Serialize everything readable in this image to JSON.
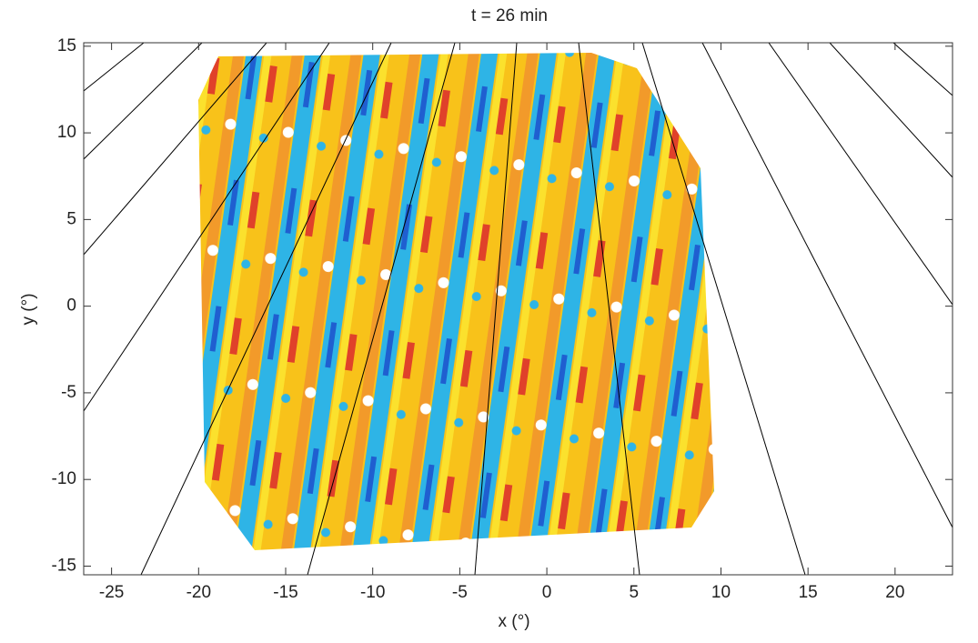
{
  "chart_data": {
    "type": "field",
    "title": "t = 26 min",
    "xlabel": "x (°)",
    "ylabel": "y (°)",
    "xlim": [
      -26.6,
      23.3
    ],
    "ylim": [
      -15.5,
      15.2
    ],
    "xticks": [
      -25,
      -20,
      -15,
      -10,
      -5,
      0,
      5,
      10,
      15,
      20
    ],
    "yticks": [
      -15,
      -10,
      -5,
      0,
      5,
      10,
      15
    ],
    "grid": false
  }
}
